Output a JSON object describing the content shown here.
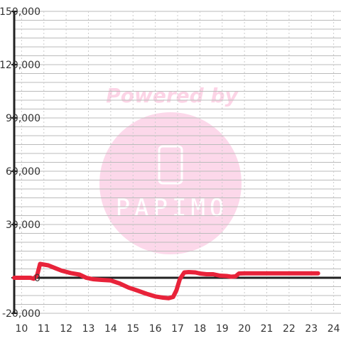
{
  "chart_data": {
    "type": "line",
    "xlim": [
      9.67,
      24.33
    ],
    "ylim": [
      -20000,
      150000
    ],
    "x_ticks": [
      10,
      11,
      12,
      13,
      14,
      15,
      16,
      17,
      18,
      19,
      20,
      21,
      22,
      23,
      24
    ],
    "x_tick_labels": [
      "10",
      "11",
      "12",
      "13",
      "14",
      "15",
      "16",
      "17",
      "18",
      "19",
      "20",
      "21",
      "22",
      "23",
      "24"
    ],
    "y_ticks": [
      -20000,
      0,
      30000,
      60000,
      90000,
      120000,
      150000
    ],
    "y_tick_labels": [
      "-20,000",
      "0",
      "30,000",
      "60,000",
      "90,000",
      "120,000",
      "150,000"
    ],
    "grid": true,
    "series": [
      {
        "color": "#e8233a",
        "points": [
          [
            9.67,
            0
          ],
          [
            10.4,
            0
          ],
          [
            10.55,
            -500
          ],
          [
            10.7,
            1500
          ],
          [
            10.83,
            7800
          ],
          [
            11.2,
            7000
          ],
          [
            11.5,
            5500
          ],
          [
            11.8,
            4000
          ],
          [
            12.2,
            2700
          ],
          [
            12.6,
            1800
          ],
          [
            12.9,
            0
          ],
          [
            13.2,
            -800
          ],
          [
            13.6,
            -1200
          ],
          [
            14.0,
            -1500
          ],
          [
            14.4,
            -3200
          ],
          [
            14.8,
            -5500
          ],
          [
            15.2,
            -7200
          ],
          [
            15.6,
            -9000
          ],
          [
            16.0,
            -10500
          ],
          [
            16.35,
            -11200
          ],
          [
            16.6,
            -11500
          ],
          [
            16.8,
            -10800
          ],
          [
            16.95,
            -7000
          ],
          [
            17.1,
            -800
          ],
          [
            17.3,
            3000
          ],
          [
            17.5,
            3200
          ],
          [
            17.8,
            3000
          ],
          [
            18.0,
            2400
          ],
          [
            18.3,
            2000
          ],
          [
            18.6,
            2000
          ],
          [
            18.9,
            1200
          ],
          [
            19.2,
            1000
          ],
          [
            19.4,
            600
          ],
          [
            19.6,
            800
          ],
          [
            19.75,
            2400
          ],
          [
            20.0,
            2500
          ],
          [
            21.0,
            2500
          ],
          [
            22.0,
            2500
          ],
          [
            23.0,
            2500
          ],
          [
            23.3,
            2500
          ]
        ]
      }
    ]
  },
  "watermark": {
    "line1": "Powered by",
    "brand": "PAPIMO",
    "color": "#fcd4e6",
    "circle_color": "#fcd8ea"
  },
  "colors": {
    "axis": "#222222",
    "grid_major": "#bbbbbb",
    "grid_minor": "#cccccc"
  }
}
